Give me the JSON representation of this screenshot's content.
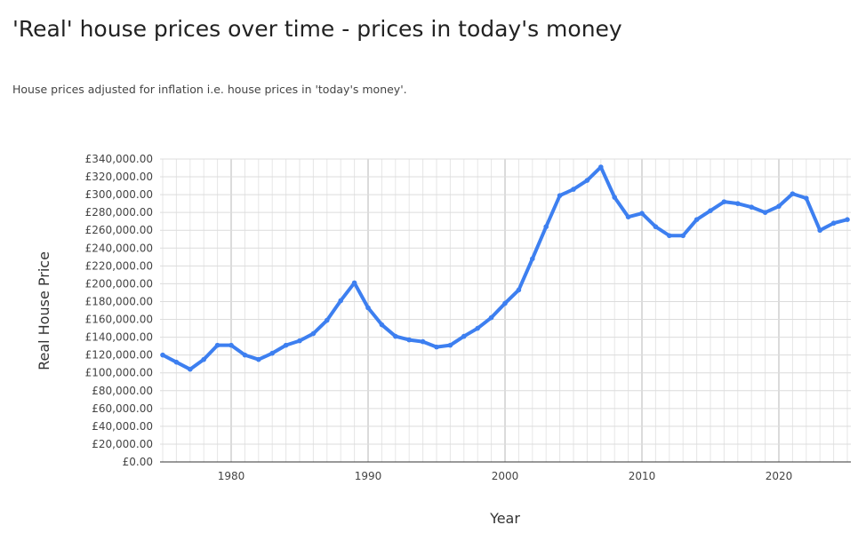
{
  "title": "'Real' house prices over time - prices in today's money",
  "subtitle": "House prices adjusted for inflation i.e. house prices in 'today's money'.",
  "chart_data": {
    "type": "line",
    "xlabel": "Year",
    "ylabel": "Real House Price",
    "xlim": [
      1975,
      2025
    ],
    "ylim": [
      0,
      340000
    ],
    "x_ticks": [
      1980,
      1990,
      2000,
      2010,
      2020
    ],
    "y_ticks": [
      0,
      20000,
      40000,
      60000,
      80000,
      100000,
      120000,
      140000,
      160000,
      180000,
      200000,
      220000,
      240000,
      260000,
      280000,
      300000,
      320000,
      340000
    ],
    "y_tick_labels": [
      "£0.00",
      "£20,000.00",
      "£40,000.00",
      "£60,000.00",
      "£80,000.00",
      "£100,000.00",
      "£120,000.00",
      "£140,000.00",
      "£160,000.00",
      "£180,000.00",
      "£200,000.00",
      "£220,000.00",
      "£240,000.00",
      "£260,000.00",
      "£280,000.00",
      "£300,000.00",
      "£320,000.00",
      "£340,000.00"
    ],
    "grid": true,
    "color": "#3d7ff0",
    "x": [
      1975,
      1976,
      1977,
      1978,
      1979,
      1980,
      1981,
      1982,
      1983,
      1984,
      1985,
      1986,
      1987,
      1988,
      1989,
      1990,
      1991,
      1992,
      1993,
      1994,
      1995,
      1996,
      1997,
      1998,
      1999,
      2000,
      2001,
      2002,
      2003,
      2004,
      2005,
      2006,
      2007,
      2008,
      2009,
      2010,
      2011,
      2012,
      2013,
      2014,
      2015,
      2016,
      2017,
      2018,
      2019,
      2020,
      2021,
      2022,
      2023,
      2024,
      2025
    ],
    "y": [
      120000,
      112000,
      104000,
      115000,
      131000,
      131000,
      120000,
      115000,
      122000,
      131000,
      136000,
      144000,
      159000,
      181000,
      201000,
      173000,
      154000,
      141000,
      137000,
      135000,
      129000,
      131000,
      141000,
      150000,
      162000,
      178000,
      193000,
      228000,
      264000,
      299000,
      306000,
      316000,
      331000,
      297000,
      275000,
      279000,
      264000,
      254000,
      254000,
      272000,
      282000,
      292000,
      290000,
      286000,
      280000,
      287000,
      301000,
      296000,
      260000,
      268000,
      272000
    ]
  }
}
